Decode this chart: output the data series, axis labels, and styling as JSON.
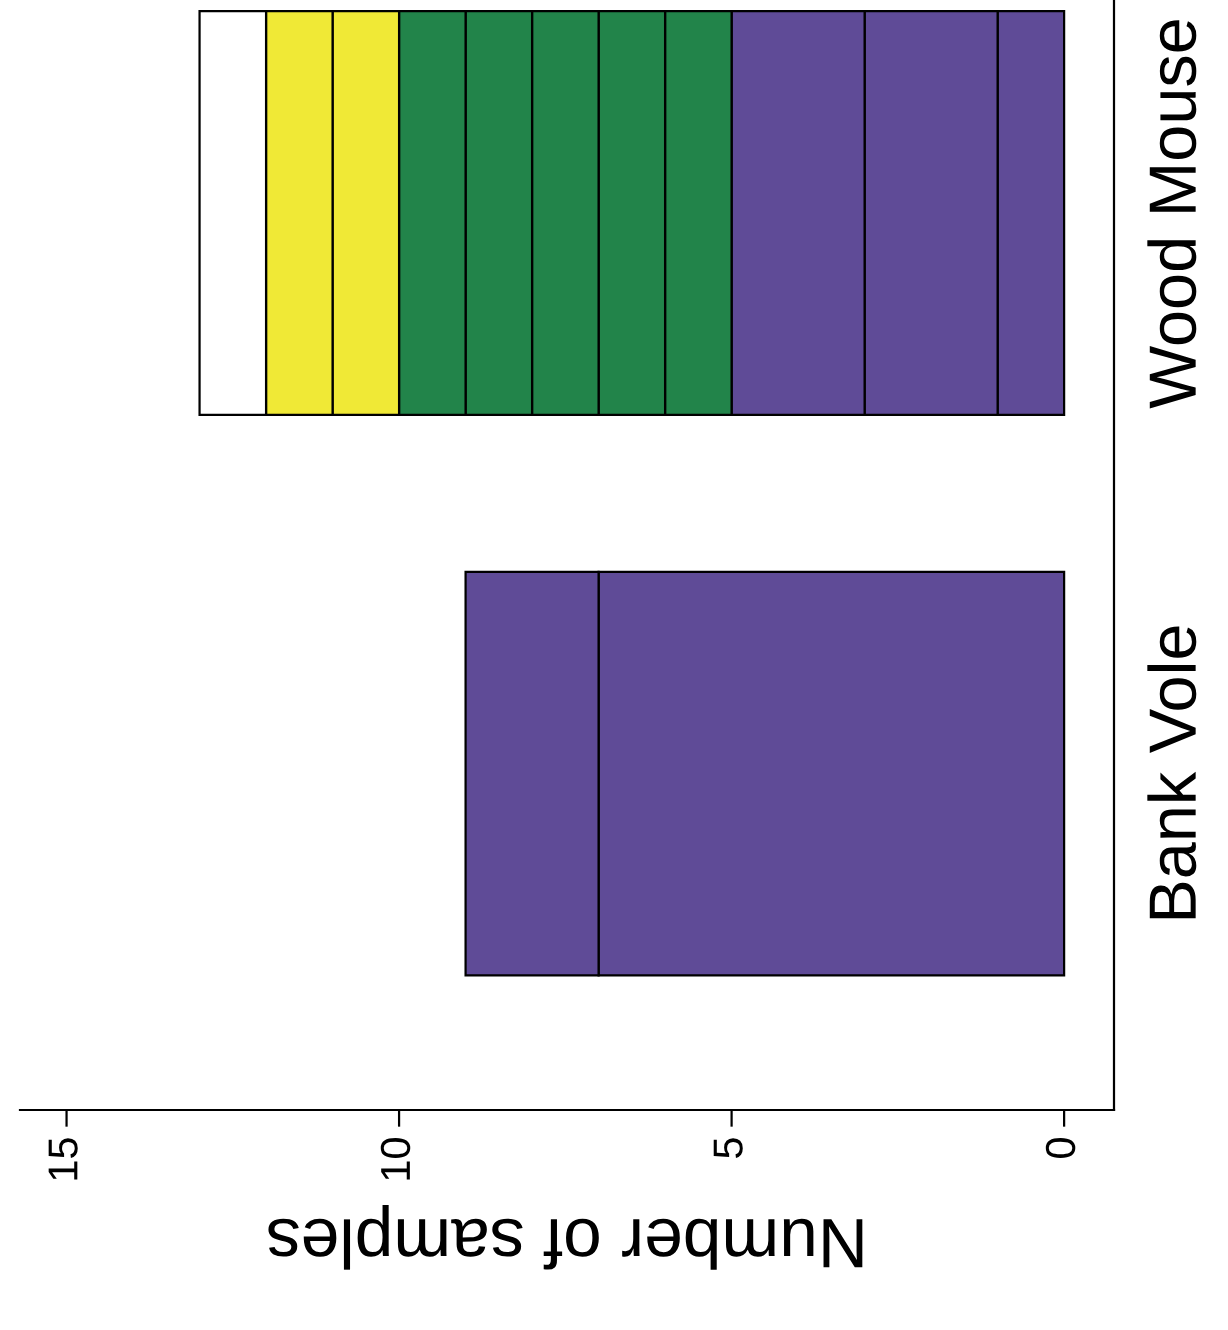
{
  "chart_data": {
    "type": "bar",
    "orientation": "horizontal",
    "stacked": true,
    "xlabel": "Number of samples",
    "categories": [
      "Wood Mouse",
      "Bank Vole"
    ],
    "series": [
      {
        "color": "#5f4b97",
        "values": [
          1,
          7
        ]
      },
      {
        "color": "#5f4b97",
        "values": [
          2,
          2
        ]
      },
      {
        "color": "#5f4b97",
        "values": [
          2,
          null
        ]
      },
      {
        "color": "#22844a",
        "values": [
          1,
          null
        ]
      },
      {
        "color": "#22844a",
        "values": [
          1,
          null
        ]
      },
      {
        "color": "#22844a",
        "values": [
          1,
          null
        ]
      },
      {
        "color": "#22844a",
        "values": [
          1,
          null
        ]
      },
      {
        "color": "#22844a",
        "values": [
          1,
          null
        ]
      },
      {
        "color": "#f0e936",
        "values": [
          1,
          null
        ]
      },
      {
        "color": "#f0e936",
        "values": [
          1,
          null
        ]
      },
      {
        "color": "#ffffff",
        "values": [
          1,
          null
        ]
      }
    ],
    "xlim": [
      15.7,
      -0.75
    ],
    "xticks": [
      0,
      5,
      10,
      15
    ],
    "grid": false,
    "legend": false
  }
}
